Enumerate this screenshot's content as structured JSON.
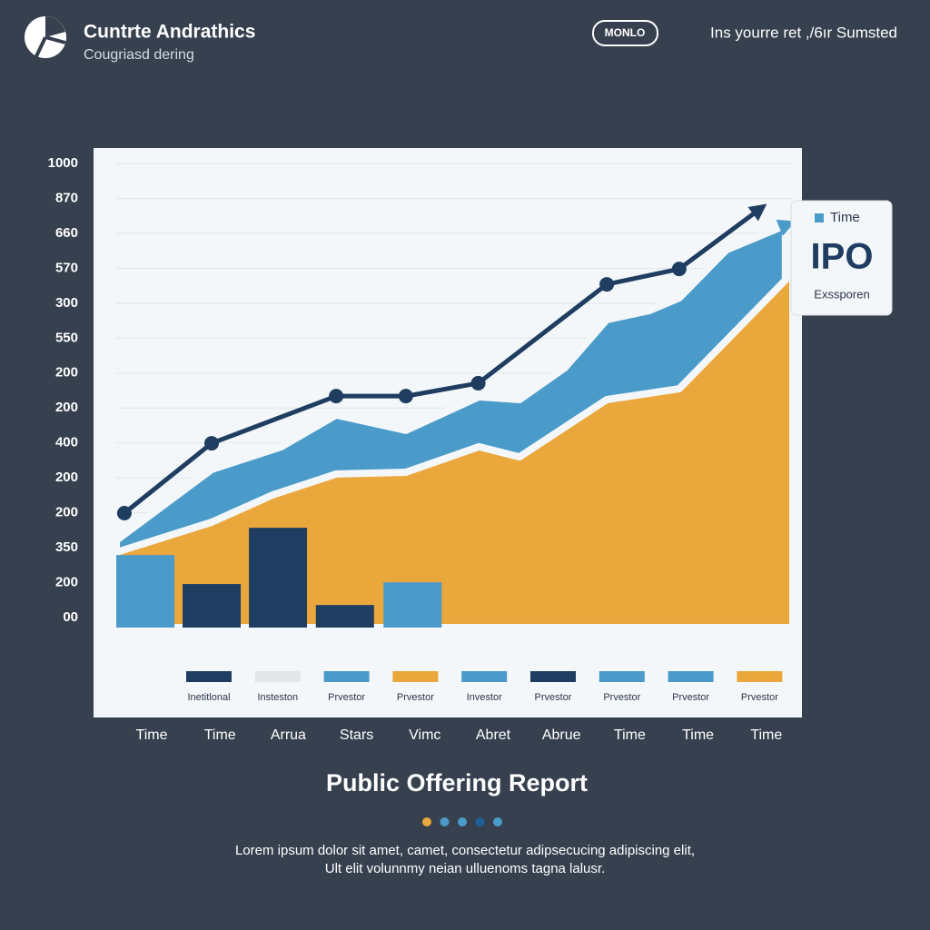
{
  "header": {
    "brand": "Cuntrte Andrathics",
    "tagline": "Cougriasd dering",
    "button": "MONLO",
    "note": "Ins yourre ret ,/6ır Sumsted"
  },
  "chart_data": {
    "type": "area",
    "y_axis_labels": [
      "1000",
      "870",
      "660",
      "570",
      "300",
      "550",
      "200",
      "200",
      "400",
      "200",
      "200",
      "350",
      "200",
      "00"
    ],
    "categories": [
      "Time",
      "Time",
      "Arrua",
      "Stars",
      "Vimc",
      "Abret",
      "Abrue",
      "Time",
      "Time",
      "Time"
    ],
    "xlim": [
      0,
      10
    ],
    "ylim": [
      0,
      13
    ],
    "series": [
      {
        "kind": "area",
        "color": "#4a9bc9",
        "x": [
          0,
          1.41,
          2.44,
          3.25,
          4.28,
          5.36,
          5.96,
          6.63,
          7.25,
          7.88,
          8.32,
          9.02,
          9.89
        ],
        "values": [
          2.21,
          4.24,
          4.89,
          5.8,
          5.36,
          6.32,
          6.24,
          7.15,
          8.53,
          8.79,
          9.15,
          10.53,
          11.23
        ]
      },
      {
        "kind": "area",
        "color": "#eaa73c",
        "x": [
          0,
          1.41,
          2.31,
          3.25,
          4.28,
          5.36,
          5.96,
          7.25,
          8.32,
          10
        ],
        "values": [
          1.87,
          2.73,
          3.51,
          4.11,
          4.16,
          4.89,
          4.6,
          6.24,
          6.55,
          9.88
        ]
      },
      {
        "kind": "bar",
        "colors": [
          "#4a9bc9",
          "#1f3d61",
          "#1f3d61",
          "#1f3d61",
          "#4a9bc9"
        ],
        "x": [
          0.43,
          1.41,
          2.39,
          3.38,
          4.38
        ],
        "values": [
          1.79,
          0.96,
          2.57,
          0.36,
          1.01
        ]
      },
      {
        "kind": "line",
        "color": "#1f3d61",
        "x": [
          0.12,
          1.41,
          3.25,
          4.28,
          5.35,
          7.25,
          8.32,
          9.55
        ],
        "values": [
          2.99,
          4.99,
          6.34,
          6.34,
          6.71,
          9.54,
          9.98,
          11.75
        ]
      }
    ],
    "legend": [
      {
        "label": "Inetitlonal",
        "color": "#1f3d61"
      },
      {
        "label": "Insteston",
        "color": "#e3e6e9"
      },
      {
        "label": "Prvestor",
        "color": "#4a9bc9"
      },
      {
        "label": "Prvestor",
        "color": "#eaa73c"
      },
      {
        "label": "Investor",
        "color": "#4a9bc9"
      },
      {
        "label": "Prvestor",
        "color": "#1f3d61"
      },
      {
        "label": "Prvestor",
        "color": "#4a9bc9"
      },
      {
        "label": "Prvestor",
        "color": "#4a9bc9"
      },
      {
        "label": "Prvestor",
        "color": "#eaa73c"
      }
    ]
  },
  "callout": {
    "legend": "Time",
    "title": "IPO",
    "caption": "Exssporen"
  },
  "footer": {
    "title": "Public Offering Report",
    "dots": [
      "#eaa73c",
      "#4a9bc9",
      "#4a9bc9",
      "#1f5f99",
      "#4a9bc9"
    ],
    "lines": [
      "Lorem ipsum dolor sit amet, camet, consectetur adipsecucing adipiscing elit,",
      "Ult elit volunnmy neian ulluenoms tagna lalusr."
    ]
  }
}
